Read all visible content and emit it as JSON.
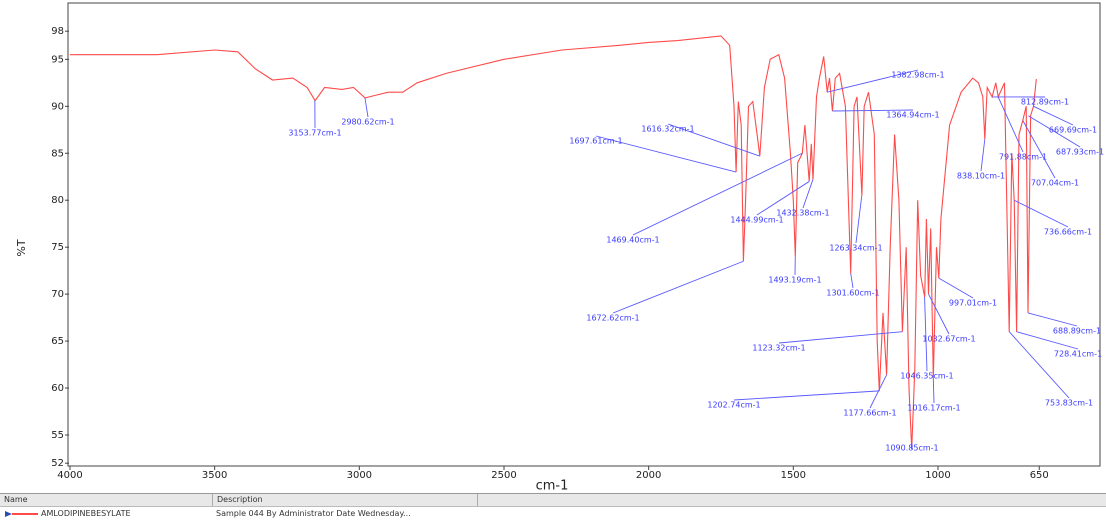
{
  "chart_data": {
    "type": "line",
    "xlabel": "cm-1",
    "ylabel": "%T",
    "xlim": [
      4000,
      440
    ],
    "ylim": [
      51.7,
      101
    ],
    "xticks": [
      4000,
      3500,
      3000,
      2500,
      2000,
      1500,
      1000,
      650
    ],
    "yticks": [
      52,
      55,
      60,
      65,
      70,
      75,
      80,
      85,
      90,
      95,
      98
    ],
    "series": [
      {
        "name": "AMLODIPINEBESYLATE",
        "color": "#ff4a4a",
        "x": [
          4000,
          3700,
          3500,
          3420,
          3360,
          3300,
          3230,
          3180,
          3153,
          3120,
          3060,
          3020,
          2980,
          2940,
          2900,
          2850,
          2800,
          2700,
          2500,
          2300,
          2100,
          2000,
          1900,
          1750,
          1720,
          1705,
          1697.6,
          1690,
          1680,
          1672.6,
          1665,
          1655,
          1640,
          1625,
          1616,
          1600,
          1580,
          1550,
          1530,
          1510,
          1500,
          1493,
          1485,
          1469,
          1460,
          1450,
          1445,
          1438,
          1432,
          1420,
          1410,
          1395,
          1383,
          1375,
          1365,
          1355,
          1340,
          1320,
          1301.6,
          1290,
          1280,
          1263,
          1255,
          1240,
          1220,
          1210,
          1202.7,
          1190,
          1177.7,
          1165,
          1150,
          1135,
          1123,
          1110,
          1100,
          1090.85,
          1080,
          1070,
          1060,
          1046,
          1040,
          1032.7,
          1025,
          1016,
          1005,
          997,
          990,
          960,
          920,
          880,
          860,
          845,
          838,
          830,
          812.9,
          800,
          791.9,
          770,
          753.8,
          745,
          736.7,
          728.4,
          720,
          707,
          695,
          688.9,
          680,
          670,
          660
        ],
        "values": [
          95.5,
          95.5,
          96.0,
          95.8,
          94,
          92.8,
          93,
          92,
          90.6,
          92,
          91.8,
          92,
          90.9,
          91.2,
          91.5,
          91.5,
          92.5,
          93.5,
          95,
          96,
          96.5,
          96.8,
          97,
          97.5,
          96.5,
          90,
          83,
          90.5,
          88,
          73.5,
          80,
          90,
          90.5,
          87,
          84.7,
          92,
          95,
          95.5,
          93,
          85,
          80,
          74,
          84,
          85,
          88,
          84,
          82,
          86,
          82.2,
          91,
          93,
          95.3,
          91.5,
          93,
          89.5,
          93,
          93.5,
          90,
          72.2,
          90,
          91,
          80.5,
          90,
          91.5,
          87,
          65,
          59.7,
          68,
          61.4,
          75,
          87,
          80,
          66,
          75,
          60,
          53.5,
          62,
          80,
          72,
          69.7,
          78,
          70,
          77,
          61,
          75,
          71.7,
          78,
          88,
          91.5,
          93,
          92.5,
          91,
          86.5,
          92,
          91,
          92.5,
          91,
          92.5,
          66,
          85,
          80,
          66,
          87,
          88.5,
          90,
          68,
          89,
          90,
          92.9
        ]
      }
    ],
    "annotations": [
      {
        "label": "3153.77cm-1",
        "x": 3153.77,
        "y": 90.6
      },
      {
        "label": "2980.62cm-1",
        "x": 2980.62,
        "y": 90.9
      },
      {
        "label": "1697.61cm-1",
        "x": 1697.61,
        "y": 83
      },
      {
        "label": "1616.32cm-1",
        "x": 1616.32,
        "y": 84.7
      },
      {
        "label": "1469.40cm-1",
        "x": 1469.4,
        "y": 85
      },
      {
        "label": "1444.99cm-1",
        "x": 1444.99,
        "y": 82
      },
      {
        "label": "1432.38cm-1",
        "x": 1432.38,
        "y": 82.2
      },
      {
        "label": "1493.19cm-1",
        "x": 1493.19,
        "y": 74
      },
      {
        "label": "1672.62cm-1",
        "x": 1672.62,
        "y": 73.5
      },
      {
        "label": "1382.98cm-1",
        "x": 1382.98,
        "y": 91.5
      },
      {
        "label": "1364.94cm-1",
        "x": 1364.94,
        "y": 89.5
      },
      {
        "label": "1263.34cm-1",
        "x": 1263.34,
        "y": 80.5
      },
      {
        "label": "1301.60cm-1",
        "x": 1301.6,
        "y": 72.2
      },
      {
        "label": "1123.32cm-1",
        "x": 1123.32,
        "y": 66
      },
      {
        "label": "1202.74cm-1",
        "x": 1202.74,
        "y": 59.7
      },
      {
        "label": "1177.66cm-1",
        "x": 1177.66,
        "y": 61.4
      },
      {
        "label": "1090.85cm-1",
        "x": 1090.85,
        "y": 53.5
      },
      {
        "label": "1046.35cm-1",
        "x": 1046.35,
        "y": 69.7
      },
      {
        "label": "1032.67cm-1",
        "x": 1032.67,
        "y": 70
      },
      {
        "label": "1016.17cm-1",
        "x": 1016.17,
        "y": 61
      },
      {
        "label": "997.01cm-1",
        "x": 997.01,
        "y": 71.7
      },
      {
        "label": "838.10cm-1",
        "x": 838.1,
        "y": 86.5
      },
      {
        "label": "812.89cm-1",
        "x": 812.89,
        "y": 91
      },
      {
        "label": "791.88cm-1",
        "x": 791.88,
        "y": 91
      },
      {
        "label": "669.69cm-1",
        "x": 669.69,
        "y": 90
      },
      {
        "label": "687.93cm-1",
        "x": 687.93,
        "y": 89
      },
      {
        "label": "707.04cm-1",
        "x": 707.04,
        "y": 88.5
      },
      {
        "label": "736.66cm-1",
        "x": 736.66,
        "y": 80
      },
      {
        "label": "688.89cm-1",
        "x": 688.89,
        "y": 68
      },
      {
        "label": "728.41cm-1",
        "x": 728.41,
        "y": 66
      },
      {
        "label": "753.83cm-1",
        "x": 753.83,
        "y": 66
      }
    ]
  },
  "table": {
    "headers": [
      "Name",
      "Description"
    ],
    "rows": [
      [
        "AMLODIPINEBESYLATE",
        "Sample 044 By Administrator Date Wednesday..."
      ]
    ]
  }
}
